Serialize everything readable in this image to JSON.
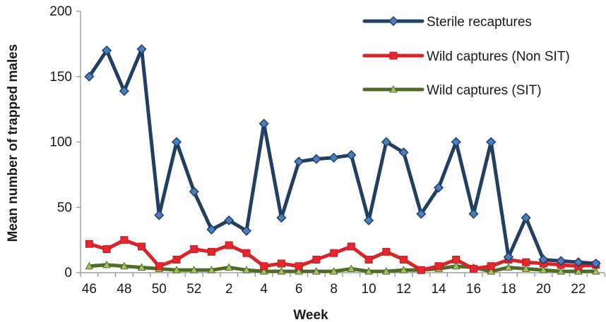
{
  "chart_data": {
    "type": "line",
    "title": "",
    "xlabel": "Week",
    "ylabel": "Mean number of trapped males",
    "ylim": [
      0,
      200
    ],
    "yticks": [
      0,
      50,
      100,
      150,
      200
    ],
    "x": [
      "46",
      "47",
      "48",
      "49",
      "50",
      "51",
      "52",
      "1",
      "2",
      "3",
      "4",
      "5",
      "6",
      "7",
      "8",
      "9",
      "10",
      "11",
      "12",
      "13",
      "14",
      "15",
      "16",
      "17",
      "18",
      "19",
      "20",
      "21",
      "22",
      "23"
    ],
    "xtick_labels": [
      "46",
      "48",
      "50",
      "52",
      "2",
      "4",
      "6",
      "8",
      "10",
      "12",
      "14",
      "16",
      "18",
      "20",
      "22"
    ],
    "grid": false,
    "legend_position": "top-right",
    "series": [
      {
        "name": "Sterile recaptures",
        "color": "#1f3f63",
        "marker": "diamond",
        "marker_color": "#4a7ec4",
        "values": [
          150,
          170,
          139,
          171,
          44,
          100,
          62,
          33,
          40,
          32,
          114,
          42,
          85,
          87,
          88,
          90,
          40,
          100,
          92,
          45,
          65,
          100,
          45,
          100,
          12,
          42,
          10,
          9,
          8,
          7
        ]
      },
      {
        "name": "Wild captures (Non SIT)",
        "color": "#d9252a",
        "marker": "square",
        "marker_color": "#e8262c",
        "values": [
          22,
          18,
          25,
          20,
          5,
          10,
          18,
          16,
          21,
          15,
          5,
          7,
          5,
          10,
          15,
          20,
          10,
          16,
          10,
          2,
          5,
          10,
          3,
          5,
          10,
          8,
          7,
          6,
          5,
          6
        ]
      },
      {
        "name": "Wild captures (SIT)",
        "color": "#4e6b2a",
        "marker": "triangle",
        "marker_color": "#a4c35a",
        "values": [
          5,
          6,
          5,
          4,
          3,
          2,
          2,
          2,
          4,
          2,
          1,
          1,
          1,
          1,
          1,
          3,
          1,
          1,
          2,
          2,
          3,
          5,
          4,
          1,
          4,
          3,
          2,
          1,
          1,
          1
        ]
      }
    ]
  }
}
